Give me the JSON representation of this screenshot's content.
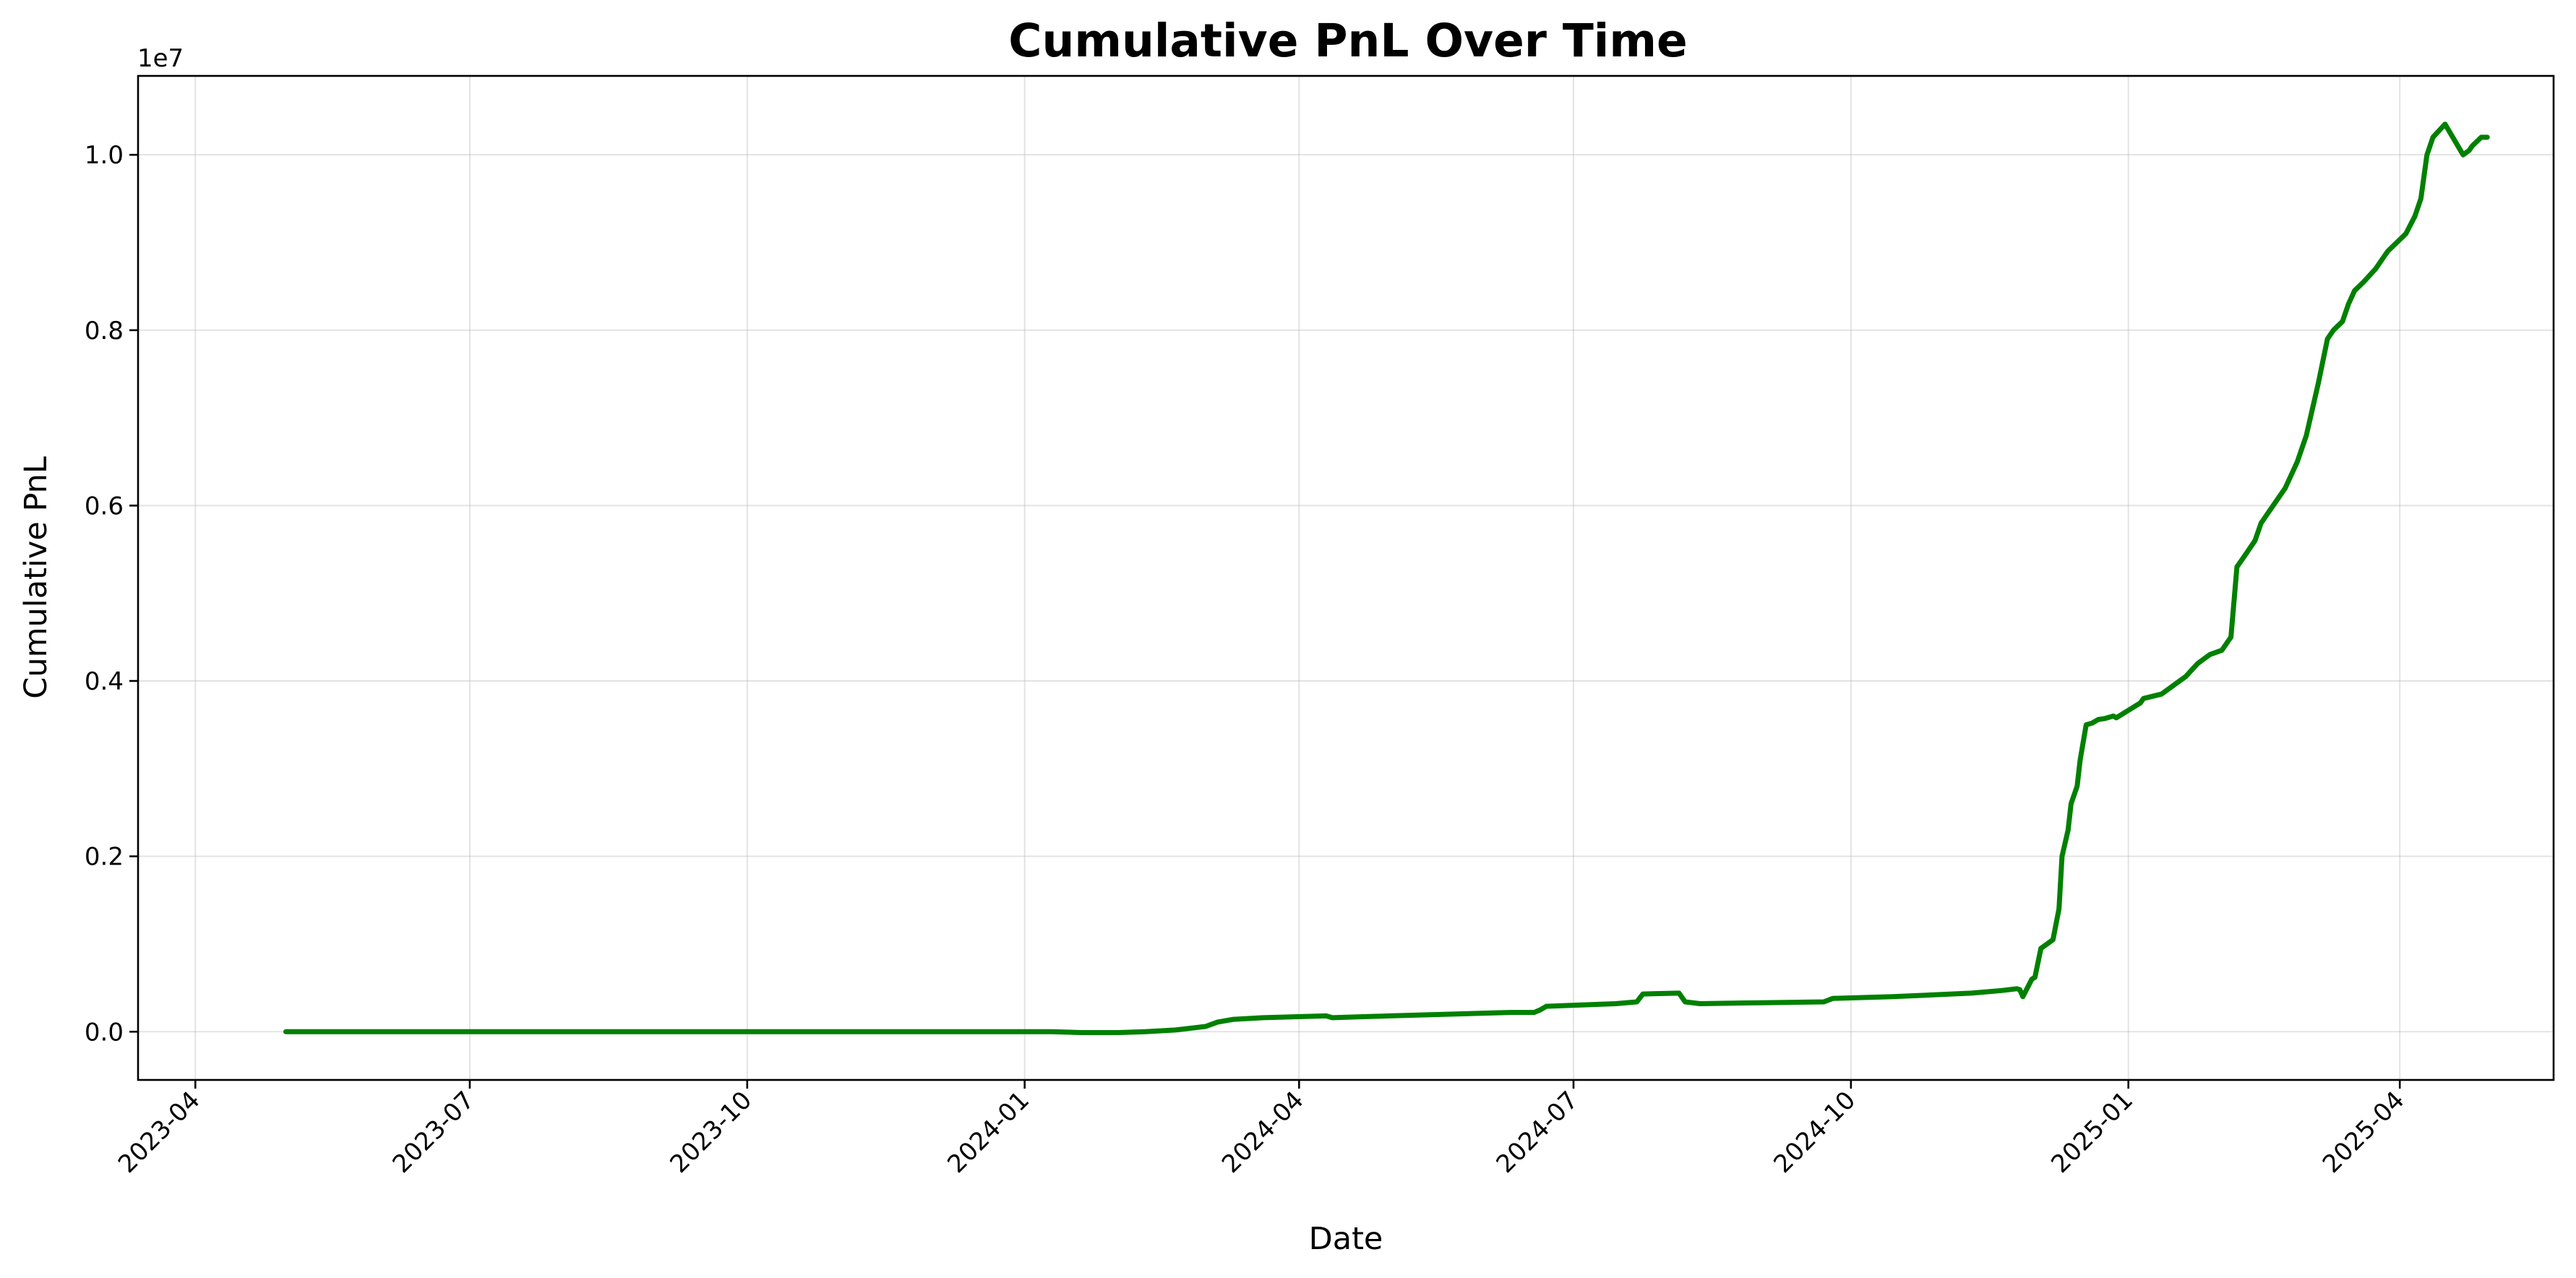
{
  "chart_data": {
    "type": "line",
    "title": "Cumulative PnL Over Time",
    "xlabel": "Date",
    "ylabel": "Cumulative PnL",
    "y_offset_label": "1e7",
    "y_scale": 10000000,
    "x_ticks": [
      "2023-04",
      "2023-07",
      "2023-10",
      "2024-01",
      "2024-04",
      "2024-07",
      "2024-10",
      "2025-01",
      "2025-04"
    ],
    "y_ticks": [
      0.0,
      0.2,
      0.4,
      0.6,
      0.8,
      1.0
    ],
    "y_tick_labels": [
      "0.0",
      "0.2",
      "0.4",
      "0.6",
      "0.8",
      "1.0"
    ],
    "xlim": [
      "2023-03-13",
      "2025-05-22"
    ],
    "ylim": [
      -0.055,
      1.09
    ],
    "grid": true,
    "line_color": "#008000",
    "series": [
      {
        "x": [
          "2023-05-01",
          "2023-08-01",
          "2023-11-01",
          "2023-12-15",
          "2024-01-10",
          "2024-01-20",
          "2024-02-01",
          "2024-02-10",
          "2024-02-20",
          "2024-03-01",
          "2024-03-05",
          "2024-03-10",
          "2024-03-20",
          "2024-04-10",
          "2024-04-12",
          "2024-05-01",
          "2024-06-10",
          "2024-06-18",
          "2024-06-20",
          "2024-06-22",
          "2024-07-15",
          "2024-07-22",
          "2024-07-24",
          "2024-08-05",
          "2024-08-07",
          "2024-08-12",
          "2024-09-01",
          "2024-09-22",
          "2024-09-25",
          "2024-10-15",
          "2024-11-10",
          "2024-11-20",
          "2024-11-25",
          "2024-11-26",
          "2024-11-27",
          "2024-11-30",
          "2024-12-01",
          "2024-12-03",
          "2024-12-05",
          "2024-12-07",
          "2024-12-09",
          "2024-12-10",
          "2024-12-12",
          "2024-12-13",
          "2024-12-15",
          "2024-12-16",
          "2024-12-18",
          "2024-12-20",
          "2024-12-22",
          "2024-12-24",
          "2024-12-27",
          "2024-12-28",
          "2025-01-05",
          "2025-01-06",
          "2025-01-12",
          "2025-01-18",
          "2025-01-20",
          "2025-01-24",
          "2025-01-28",
          "2025-02-01",
          "2025-02-04",
          "2025-02-06",
          "2025-02-08",
          "2025-02-12",
          "2025-02-14",
          "2025-02-18",
          "2025-02-22",
          "2025-02-26",
          "2025-03-01",
          "2025-03-05",
          "2025-03-08",
          "2025-03-10",
          "2025-03-13",
          "2025-03-15",
          "2025-03-17",
          "2025-03-20",
          "2025-03-24",
          "2025-03-28",
          "2025-04-03",
          "2025-04-06",
          "2025-04-08",
          "2025-04-10",
          "2025-04-12",
          "2025-04-16",
          "2025-04-22",
          "2025-04-24",
          "2025-04-25",
          "2025-04-28",
          "2025-04-30"
        ],
        "y": [
          0.0,
          0.0,
          0.0,
          0.0,
          0.0,
          -0.001,
          -0.001,
          0.0,
          0.002,
          0.006,
          0.011,
          0.014,
          0.016,
          0.018,
          0.016,
          0.018,
          0.022,
          0.022,
          0.025,
          0.029,
          0.032,
          0.034,
          0.043,
          0.044,
          0.034,
          0.032,
          0.033,
          0.034,
          0.038,
          0.04,
          0.044,
          0.047,
          0.049,
          0.048,
          0.04,
          0.06,
          0.062,
          0.095,
          0.1,
          0.105,
          0.14,
          0.2,
          0.23,
          0.26,
          0.28,
          0.31,
          0.35,
          0.352,
          0.356,
          0.357,
          0.36,
          0.358,
          0.375,
          0.38,
          0.385,
          0.4,
          0.405,
          0.42,
          0.43,
          0.435,
          0.45,
          0.53,
          0.54,
          0.56,
          0.58,
          0.6,
          0.62,
          0.65,
          0.68,
          0.74,
          0.79,
          0.8,
          0.81,
          0.83,
          0.845,
          0.855,
          0.87,
          0.89,
          0.91,
          0.93,
          0.95,
          1.0,
          1.02,
          1.035,
          1.0,
          1.005,
          1.01,
          1.02,
          1.02
        ]
      }
    ]
  }
}
